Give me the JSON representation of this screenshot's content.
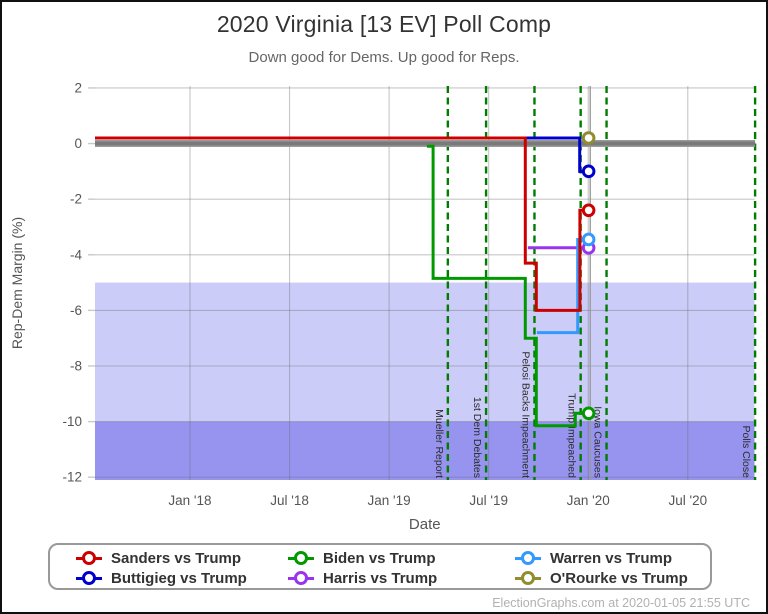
{
  "header": {
    "title": "2020 Virginia [13 EV] Poll Comp",
    "subtitle": "Down good for Dems. Up good for Reps."
  },
  "footer": {
    "credit": "ElectionGraphs.com at 2020-01-05 21:55 UTC"
  },
  "legend": {
    "items": [
      {
        "label": "Sanders vs Trump",
        "color": "#cc0000"
      },
      {
        "label": "Biden vs Trump",
        "color": "#009900"
      },
      {
        "label": "Warren vs Trump",
        "color": "#3399ff"
      },
      {
        "label": "Buttigieg vs Trump",
        "color": "#0000cc"
      },
      {
        "label": "Harris vs Trump",
        "color": "#9933ee"
      },
      {
        "label": "O'Rourke vs Trump",
        "color": "#8f8d2f"
      }
    ]
  },
  "chart_data": {
    "type": "line",
    "title": "2020 Virginia [13 EV] Poll Comp",
    "subtitle": "Down good for Dems. Up good for Reps.",
    "xlabel": "Date",
    "ylabel": "Rep-Dem Margin (%)",
    "xlim": [
      2017.523,
      2020.835
    ],
    "ylim": [
      -12.1,
      2.07
    ],
    "x_ticks": [
      {
        "t": 2018.0,
        "label": "Jan '18"
      },
      {
        "t": 2018.5,
        "label": "Jul '18"
      },
      {
        "t": 2019.0,
        "label": "Jan '19"
      },
      {
        "t": 2019.5,
        "label": "Jul '19"
      },
      {
        "t": 2020.0,
        "label": "Jan '20"
      },
      {
        "t": 2020.5,
        "label": "Jul '20"
      }
    ],
    "y_ticks": [
      2,
      0,
      -2,
      -4,
      -6,
      -8,
      -10,
      -12
    ],
    "grid": true,
    "legend_position": "bottom",
    "bands": [
      {
        "from": -5,
        "to": -10,
        "color": "#ccccf8",
        "meaning": "strong-dem-zone"
      },
      {
        "from": -10,
        "to": -12.1,
        "color": "#9694ee",
        "meaning": "solid-dem-zone"
      }
    ],
    "zero_line": {
      "value": 0,
      "color_outer": "#9a9a9a",
      "color_inner": "#7a7a7a",
      "t_end": 2020.838
    },
    "today_line": {
      "t": 2020.01,
      "color": "#9a9a9a"
    },
    "event_color": "#007c00",
    "events": [
      {
        "label": "Mueller Report",
        "t": 2019.295
      },
      {
        "label": "1st Dem Debates",
        "t": 2019.487
      },
      {
        "label": "Pelosi Backs Impeachment",
        "t": 2019.73
      },
      {
        "label": "Trump Impeached",
        "t": 2019.962
      },
      {
        "label": "Iowa Caucuses",
        "t": 2020.092
      },
      {
        "label": "Polls Close",
        "t": 2020.838
      }
    ],
    "series": [
      {
        "name": "O'Rourke vs Trump",
        "key": "orourke",
        "color": "#8f8d2f",
        "final": 0.2,
        "points": [
          [
            2019.955,
            0.2
          ],
          [
            2020.002,
            0.2
          ]
        ]
      },
      {
        "name": "Harris vs Trump",
        "key": "harris",
        "color": "#9933ee",
        "final": -3.75,
        "points": [
          [
            2019.697,
            -3.75
          ],
          [
            2020.002,
            -3.75
          ]
        ]
      },
      {
        "name": "Warren vs Trump",
        "key": "warren",
        "color": "#3399ff",
        "final": -3.45,
        "points": [
          [
            2019.742,
            -6.8
          ],
          [
            2019.947,
            -6.8
          ],
          [
            2019.947,
            -3.45
          ],
          [
            2020.002,
            -3.45
          ]
        ]
      },
      {
        "name": "Buttigieg vs Trump",
        "key": "buttigieg",
        "color": "#0000cc",
        "final": -1.0,
        "points": [
          [
            2019.684,
            0.2
          ],
          [
            2019.957,
            0.2
          ],
          [
            2019.957,
            -1.0
          ],
          [
            2020.002,
            -1.0
          ]
        ]
      },
      {
        "name": "Biden vs Trump",
        "key": "biden",
        "color": "#009900",
        "final": -9.7,
        "points": [
          [
            2019.19,
            -0.1
          ],
          [
            2019.221,
            -0.1
          ],
          [
            2019.221,
            -4.85
          ],
          [
            2019.684,
            -4.85
          ],
          [
            2019.684,
            -7.0
          ],
          [
            2019.739,
            -7.0
          ],
          [
            2019.739,
            -10.15
          ],
          [
            2019.935,
            -10.15
          ],
          [
            2019.935,
            -9.7
          ],
          [
            2020.002,
            -9.7
          ]
        ]
      },
      {
        "name": "Sanders vs Trump",
        "key": "sanders",
        "color": "#cc0000",
        "final": -2.4,
        "points": [
          [
            2017.523,
            0.2
          ],
          [
            2019.684,
            0.2
          ],
          [
            2019.684,
            -4.3
          ],
          [
            2019.739,
            -4.3
          ],
          [
            2019.739,
            -6.0
          ],
          [
            2019.958,
            -6.0
          ],
          [
            2019.958,
            -2.4
          ],
          [
            2020.002,
            -2.4
          ]
        ]
      }
    ]
  }
}
